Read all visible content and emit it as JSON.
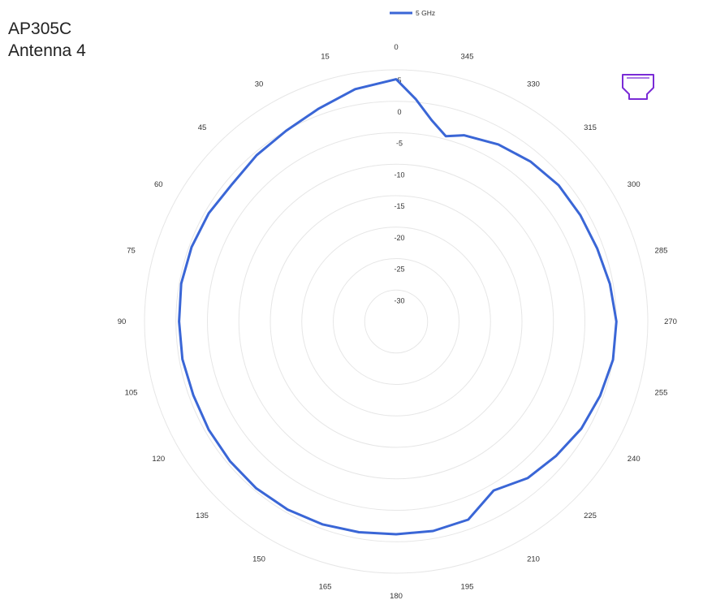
{
  "title_lines": [
    "AP305C",
    "Antenna 4"
  ],
  "chart_data": {
    "type": "polar-line",
    "title": "AP305C Antenna 4",
    "angular_direction": "counterclockwise",
    "zero_location": "top",
    "angle_ticks": [
      0,
      15,
      30,
      45,
      60,
      75,
      90,
      105,
      120,
      135,
      150,
      165,
      180,
      195,
      210,
      225,
      240,
      255,
      270,
      285,
      300,
      315,
      330,
      345
    ],
    "radial_ticks": [
      5,
      0,
      -5,
      -10,
      -15,
      -20,
      -25,
      -30
    ],
    "rlim": [
      -35,
      5
    ],
    "grid": true,
    "legend": {
      "placement": "top-center",
      "entries": [
        "5 GHz"
      ]
    },
    "series": [
      {
        "name": "5 GHz",
        "color": "#3a66d6",
        "angles": [
          0,
          10,
          20,
          30,
          40,
          50,
          60,
          70,
          80,
          90,
          100,
          110,
          120,
          130,
          140,
          150,
          160,
          170,
          180,
          190,
          200,
          210,
          220,
          230,
          240,
          250,
          260,
          270,
          280,
          290,
          300,
          310,
          320,
          330,
          340,
          345,
          350,
          355
        ],
        "values": [
          3.5,
          2.5,
          1.0,
          0.0,
          -0.5,
          -1.0,
          -0.6,
          -0.4,
          -0.3,
          -0.5,
          -0.5,
          -0.7,
          -0.6,
          -0.5,
          -0.4,
          -0.5,
          -0.7,
          -1.0,
          -1.2,
          -1.2,
          -1.5,
          -4.0,
          -2.5,
          -1.8,
          -1.0,
          -0.5,
          0.0,
          0.0,
          -0.5,
          -1.0,
          -1.2,
          -1.3,
          -1.8,
          -2.5,
          -3.5,
          -4.5,
          -2.5,
          0.5
        ]
      }
    ],
    "annotations": [
      {
        "type": "icon",
        "name": "ap-orientation-icon",
        "color": "#7a2bd6",
        "placement": "upper-right"
      }
    ]
  }
}
